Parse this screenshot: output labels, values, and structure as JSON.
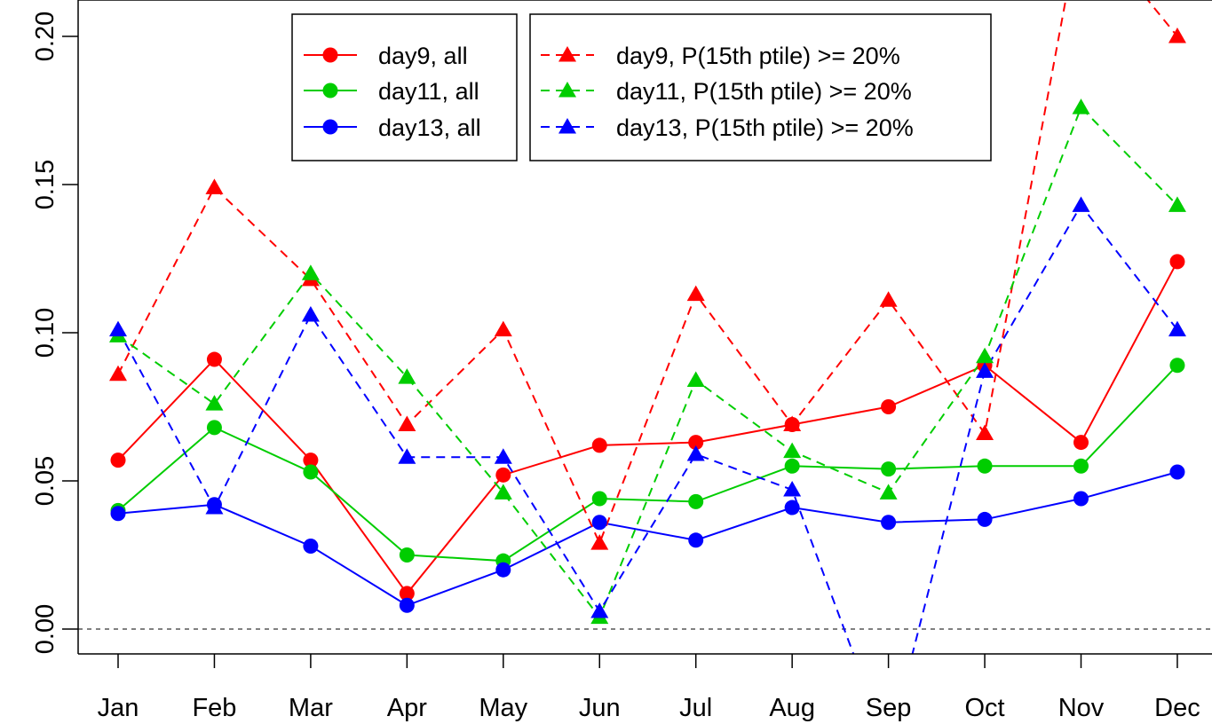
{
  "chart_data": {
    "type": "line",
    "title": "",
    "xlabel": "",
    "ylabel": "",
    "categories": [
      "Jan",
      "Feb",
      "Mar",
      "Apr",
      "May",
      "Jun",
      "Jul",
      "Aug",
      "Sep",
      "Oct",
      "Nov",
      "Dec"
    ],
    "y_ticks": [
      "0.00",
      "0.05",
      "0.10",
      "0.15",
      "0.20"
    ],
    "ylim": [
      -0.008,
      0.208
    ],
    "reference_line": {
      "y": 0.0,
      "style": "dotted",
      "color": "#808080"
    },
    "grid": false,
    "legend": [
      {
        "position": "top-left",
        "entries": [
          "day9, all",
          "day11, all",
          "day13, all"
        ]
      },
      {
        "position": "top-center",
        "entries": [
          "day9, P(15th ptile) >= 20%",
          "day11, P(15th ptile) >= 20%",
          "day13, P(15th ptile) >= 20%"
        ]
      }
    ],
    "series": [
      {
        "name": "day9, all",
        "color": "#ff0000",
        "dash": "solid",
        "marker": "circle",
        "values": [
          0.057,
          0.091,
          0.057,
          0.012,
          0.052,
          0.062,
          0.063,
          0.069,
          0.075,
          0.089,
          0.063,
          0.124
        ]
      },
      {
        "name": "day11, all",
        "color": "#00cd00",
        "dash": "solid",
        "marker": "circle",
        "values": [
          0.04,
          0.068,
          0.053,
          0.025,
          0.023,
          0.044,
          0.043,
          0.055,
          0.054,
          0.055,
          0.055,
          0.089
        ]
      },
      {
        "name": "day13, all",
        "color": "#0000ff",
        "dash": "solid",
        "marker": "circle",
        "values": [
          0.039,
          0.042,
          0.028,
          0.008,
          0.02,
          0.036,
          0.03,
          0.041,
          0.036,
          0.037,
          0.044,
          0.053
        ]
      },
      {
        "name": "day9, P(15th ptile) >= 20%",
        "color": "#ff0000",
        "dash": "dashed",
        "marker": "triangle",
        "values": [
          0.086,
          0.149,
          0.118,
          0.069,
          0.101,
          0.029,
          0.113,
          0.069,
          0.111,
          0.066,
          0.24,
          0.2
        ]
      },
      {
        "name": "day11, P(15th ptile) >= 20%",
        "color": "#00cd00",
        "dash": "dashed",
        "marker": "triangle",
        "values": [
          0.099,
          0.076,
          0.12,
          0.085,
          0.046,
          0.004,
          0.084,
          0.06,
          0.046,
          0.092,
          0.176,
          0.143
        ]
      },
      {
        "name": "day13, P(15th ptile) >= 20%",
        "color": "#0000ff",
        "dash": "dashed",
        "marker": "triangle",
        "values": [
          0.101,
          0.041,
          0.106,
          0.058,
          0.058,
          0.006,
          0.059,
          0.047,
          -0.04,
          0.087,
          0.143,
          0.101
        ]
      }
    ]
  }
}
